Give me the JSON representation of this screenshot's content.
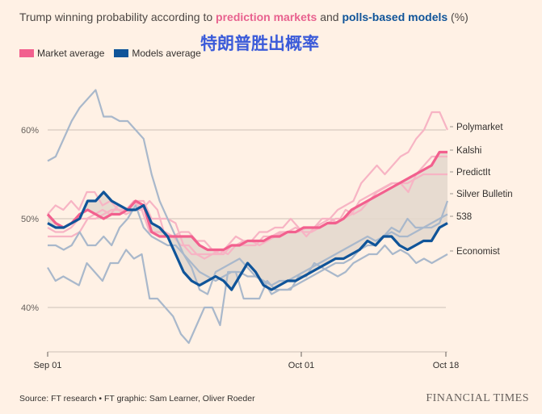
{
  "title": {
    "prefix": "Trump winning probability according to ",
    "markets": "prediction markets",
    "middle": " and ",
    "models": "polls-based models",
    "suffix": " (%)"
  },
  "overlay_title": "特朗普胜出概率",
  "legend": [
    {
      "label": "Market average",
      "color": "#f2608e"
    },
    {
      "label": "Models average",
      "color": "#0f5499"
    }
  ],
  "source": "Source: FT research • FT graphic: Sam Learner, Oliver Roeder",
  "brand": "FINANCIAL TIMES",
  "colors": {
    "background": "#fff1e5",
    "market_source": "#f7b4c4",
    "model_source": "#a9b8cb",
    "band": "#e3d7cd",
    "gridline": "#ccc1b7"
  },
  "chart_data": {
    "type": "line",
    "x_ticks": [
      "Sep 01",
      "Oct 01",
      "Oct 18"
    ],
    "y_ticks": [
      "40%",
      "50%",
      "60%"
    ],
    "ylim": [
      35,
      65
    ],
    "xlim_days": [
      0,
      47
    ],
    "grid": true,
    "series": [
      {
        "name": "Polymarket",
        "group": "market",
        "values": [
          50.5,
          51.5,
          51,
          52,
          51,
          53,
          53,
          51.5,
          52,
          51,
          50.5,
          51,
          51,
          52,
          51,
          48,
          48,
          48.5,
          48.5,
          47.5,
          47.5,
          46.5,
          46,
          47,
          48,
          47.5,
          47.5,
          48.5,
          48.5,
          49,
          49,
          50,
          49,
          48,
          49,
          50,
          50,
          51,
          51.5,
          52,
          54,
          55,
          56,
          55,
          56,
          57,
          57.5,
          59,
          60,
          62,
          62,
          60
        ]
      },
      {
        "name": "Kalshi",
        "group": "market",
        "values": [
          49,
          48.5,
          48.5,
          49,
          50,
          50,
          50.5,
          51,
          50.5,
          51.5,
          51,
          52,
          51,
          48.5,
          48.5,
          48.5,
          48,
          47,
          47,
          46,
          45.5,
          46,
          46.5,
          46,
          47,
          47.5,
          47.5,
          47,
          47.5,
          48,
          48.5,
          48.5,
          48.5,
          49,
          49,
          49.5,
          50,
          49.5,
          51,
          50.5,
          51,
          52,
          53,
          53.5,
          54,
          54,
          53,
          55,
          56,
          57,
          57,
          57
        ]
      },
      {
        "name": "PredictIt",
        "group": "market",
        "values": [
          48,
          48,
          48,
          48,
          48.5,
          50,
          50,
          50.5,
          51,
          51,
          51,
          52,
          52,
          50,
          50,
          50,
          49.5,
          47,
          46,
          46,
          46,
          46,
          46,
          47,
          47,
          47,
          47,
          48,
          48,
          48.5,
          48.5,
          49,
          48.5,
          48.5,
          49,
          49.5,
          50,
          50,
          50.5,
          52,
          52.5,
          53,
          53.5,
          54,
          54,
          54,
          54.5,
          55,
          55,
          55,
          55
        ]
      },
      {
        "name": "Silver Bulletin",
        "group": "model",
        "values": [
          56.5,
          57,
          59,
          61,
          62.5,
          63.5,
          64.5,
          61.5,
          61.5,
          61,
          61,
          60,
          59,
          55,
          52,
          50,
          48,
          46,
          44.5,
          42,
          41.5,
          44,
          44.5,
          45,
          45.5,
          44.5,
          43.5,
          43,
          41.5,
          42,
          42,
          42.5,
          43,
          43.5,
          44,
          44.5,
          45,
          45,
          45.5,
          46.5,
          47,
          47,
          48,
          49,
          48.5,
          50,
          49,
          49,
          49,
          49.5,
          52
        ]
      },
      {
        "name": "538",
        "group": "model",
        "values": [
          47,
          47,
          46.5,
          47,
          48.5,
          47,
          47,
          48,
          47,
          49,
          50,
          51.5,
          49,
          48,
          47.5,
          47,
          47,
          46,
          45,
          44,
          43.5,
          43,
          43.5,
          44,
          44,
          43.5,
          43.5,
          43,
          42.5,
          43,
          43,
          43.5,
          44,
          44.5,
          45,
          45.5,
          46,
          46.5,
          47,
          47.5,
          48,
          47.5,
          48,
          48.5,
          48,
          48,
          48.5,
          49,
          49.5,
          50,
          50.5
        ]
      },
      {
        "name": "Economist",
        "group": "model",
        "values": [
          44.5,
          43,
          43.5,
          43,
          42.5,
          45,
          44,
          43,
          45,
          45,
          46.5,
          45.5,
          46,
          41,
          41,
          40,
          39,
          37,
          36,
          38,
          40,
          40,
          38,
          44,
          44,
          41,
          41,
          41,
          43,
          42,
          42,
          42,
          43.5,
          43.5,
          45,
          44.5,
          44,
          43.5,
          44,
          45,
          45.5,
          46,
          46,
          47,
          46,
          46.5,
          46,
          45,
          45.5,
          45,
          45.5,
          46
        ]
      },
      {
        "name": "Market average",
        "group": "avg-market",
        "values": [
          50.5,
          49.5,
          49,
          49.5,
          50.5,
          51,
          50.5,
          50,
          50.5,
          50.5,
          51,
          52,
          51.5,
          48.5,
          48,
          48,
          48,
          48,
          48,
          47,
          46.5,
          46.5,
          46.5,
          47,
          47,
          47.5,
          47.5,
          47.5,
          48,
          48,
          48.5,
          48.5,
          49,
          49,
          49,
          49.5,
          49.5,
          50,
          51,
          51.5,
          52,
          52.5,
          53,
          53.5,
          54,
          54.5,
          55,
          55.5,
          56,
          57.5,
          57.5
        ]
      },
      {
        "name": "Models average",
        "group": "avg-model",
        "values": [
          49.5,
          49,
          49,
          49.5,
          50,
          52,
          52,
          53,
          52,
          51.5,
          51,
          51,
          51.5,
          49.5,
          49,
          48,
          46,
          44,
          43,
          42.5,
          43,
          43.5,
          43,
          42,
          43.5,
          45,
          44,
          42.5,
          42,
          42.5,
          43,
          43,
          43.5,
          44,
          44.5,
          45,
          45.5,
          45.5,
          46,
          46.5,
          47.5,
          47,
          48,
          48,
          47,
          46.5,
          47,
          47.5,
          47.5,
          49,
          49.5
        ]
      }
    ],
    "end_labels": [
      "Polymarket",
      "Kalshi",
      "PredictIt",
      "Silver Bulletin",
      "538",
      "Economist"
    ]
  }
}
